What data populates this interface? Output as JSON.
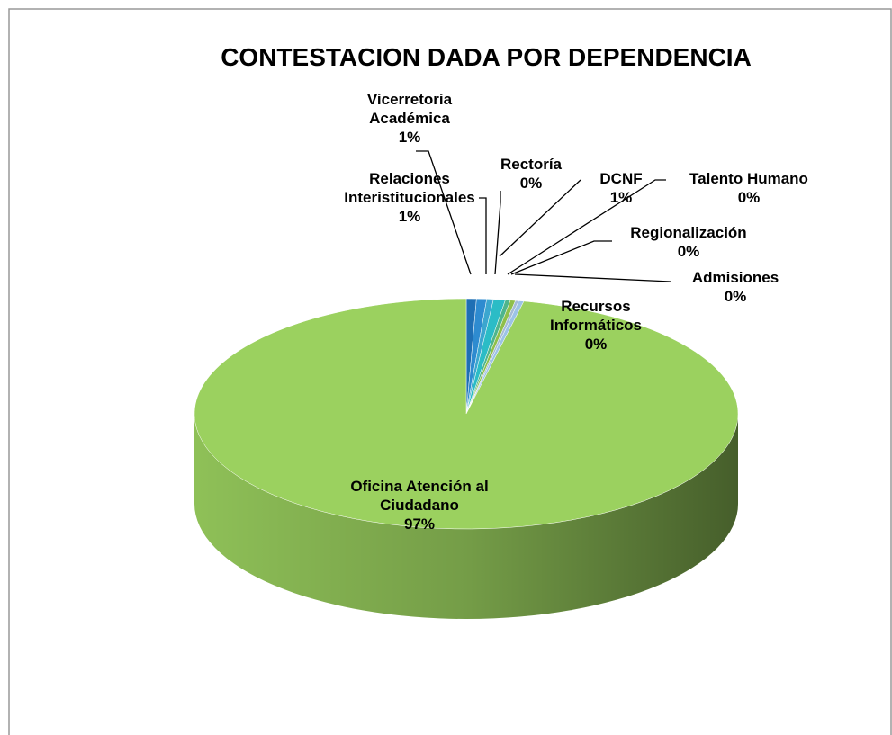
{
  "chart_data": {
    "type": "pie3d",
    "title": "CONTESTACION DADA POR DEPENDENCIA",
    "categories": [
      "Vicerretoria Académica",
      "Relaciones Interistitucionales",
      "Rectoría",
      "DCNF",
      "Talento Humano",
      "Regionalización",
      "Admisiones",
      "Recursos Informáticos",
      "Oficina Atención al Ciudadano"
    ],
    "values": [
      0.6,
      0.6,
      0.4,
      0.7,
      0.3,
      0.3,
      0.2,
      0.3,
      96.6
    ],
    "value_labels": [
      "1%",
      "1%",
      "0%",
      "1%",
      "0%",
      "0%",
      "0%",
      "0%",
      "97%"
    ],
    "colors": [
      "#1f6fb4",
      "#2e8bd0",
      "#3ba6cf",
      "#2bbcc6",
      "#4fb58c",
      "#8fbf4a",
      "#a6bcd6",
      "#9cc3e6",
      "#9bd15f"
    ]
  }
}
